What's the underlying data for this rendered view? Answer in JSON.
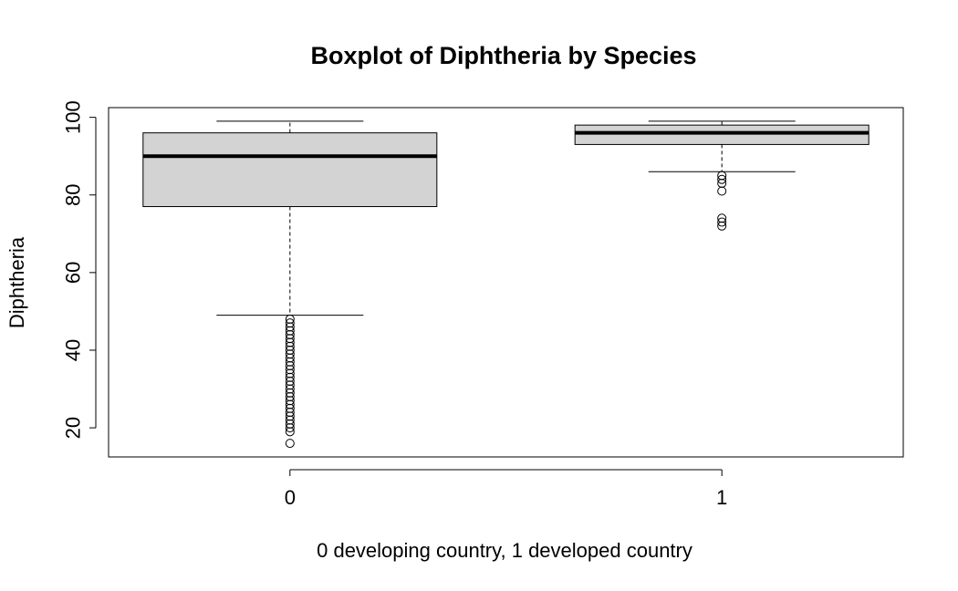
{
  "chart_data": {
    "type": "boxplot",
    "title": "Boxplot of Diphtheria by Species",
    "xlabel": "0 developing country, 1 developed country",
    "ylabel": "Diphtheria",
    "ylim": [
      12.5,
      102.5
    ],
    "yticks": [
      20,
      40,
      60,
      80,
      100
    ],
    "grid": false,
    "legend": "none",
    "colors": {
      "box_fill": "#d3d3d3",
      "stroke": "#000000"
    },
    "categories": [
      "0",
      "1"
    ],
    "boxes": [
      {
        "category": "0",
        "whisker_low": 49,
        "q1": 77,
        "median": 90,
        "q3": 96,
        "whisker_high": 99,
        "outliers": [
          48,
          47,
          46,
          45,
          44,
          43,
          42,
          41,
          40,
          39,
          38,
          37,
          36,
          35,
          34,
          33,
          32,
          31,
          30,
          29,
          28,
          27,
          26,
          25,
          24,
          23,
          22,
          21,
          20,
          19,
          16
        ]
      },
      {
        "category": "1",
        "whisker_low": 86,
        "q1": 93,
        "median": 96,
        "q3": 98,
        "whisker_high": 99,
        "outliers": [
          85,
          84,
          83,
          81,
          74,
          73,
          72
        ]
      }
    ]
  }
}
